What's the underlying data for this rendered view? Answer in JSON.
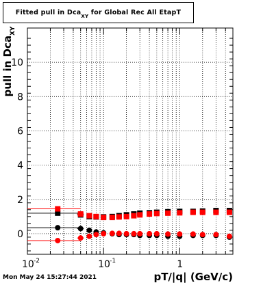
{
  "title": {
    "main": "Fitted pull in Dca",
    "sub": "XY",
    "rest": " for Global Rec All EtapT"
  },
  "y_axis_label": {
    "main": "pull in Dca",
    "sub": "XY"
  },
  "x_axis_label": "pT/|q| (GeV/c)",
  "timestamp": "Mon May 24 15:27:44 2021",
  "chart_data": {
    "type": "scatter",
    "x_scale": "log",
    "xlim": [
      0.01,
      5
    ],
    "ylim": [
      -1.2,
      12
    ],
    "y_ticks": [
      0,
      2,
      4,
      6,
      8,
      10
    ],
    "y_tick_labels": [
      "0",
      "2",
      "4",
      "6",
      "8",
      "10"
    ],
    "x_ticks": [
      0.01,
      0.1,
      1
    ],
    "x_tick_labels": [
      "10",
      "10",
      "1"
    ],
    "x_tick_exponents": [
      "-2",
      "-1",
      ""
    ],
    "grid": true,
    "series": [
      {
        "color": "#000000",
        "marker": "square",
        "x": [
          0.025,
          0.05,
          0.065,
          0.08,
          0.1,
          0.13,
          0.16,
          0.2,
          0.25,
          0.3,
          0.4,
          0.5,
          0.7,
          1.0,
          1.5,
          2.0,
          3.0,
          4.5
        ],
        "y": [
          1.2,
          1.1,
          1.0,
          0.98,
          0.98,
          1.0,
          1.05,
          1.1,
          1.15,
          1.2,
          1.22,
          1.25,
          1.28,
          1.3,
          1.3,
          1.32,
          1.35,
          1.35
        ],
        "xerr_low": [
          0.015,
          0.005,
          0.005,
          0.005,
          0.005,
          0.005,
          0.005,
          0.005,
          0.005,
          0.005,
          0.005,
          0.005,
          0.005,
          0.005,
          0.005,
          0.005,
          0.005,
          0.005
        ],
        "xerr_high": [
          0.025,
          0.005,
          0.005,
          0.005,
          0.005,
          0.005,
          0.005,
          0.005,
          0.005,
          0.005,
          0.005,
          0.005,
          0.005,
          0.005,
          0.005,
          0.005,
          0.005,
          0.005
        ]
      },
      {
        "color": "#ff0000",
        "marker": "square",
        "x": [
          0.025,
          0.05,
          0.065,
          0.08,
          0.1,
          0.13,
          0.16,
          0.2,
          0.25,
          0.3,
          0.4,
          0.5,
          0.7,
          1.0,
          1.5,
          2.0,
          3.0,
          4.5
        ],
        "y": [
          1.45,
          1.15,
          1.05,
          1.0,
          0.95,
          0.95,
          0.98,
          1.0,
          1.05,
          1.1,
          1.15,
          1.18,
          1.2,
          1.22,
          1.25,
          1.25,
          1.25,
          1.25
        ],
        "xerr_low": [
          0.015,
          0.005,
          0.005,
          0.005,
          0.005,
          0.005,
          0.005,
          0.005,
          0.005,
          0.005,
          0.005,
          0.005,
          0.005,
          0.005,
          0.005,
          0.005,
          0.005,
          0.005
        ],
        "xerr_high": [
          0.025,
          0.005,
          0.005,
          0.005,
          0.005,
          0.005,
          0.005,
          0.005,
          0.005,
          0.005,
          0.005,
          0.005,
          0.005,
          0.005,
          0.005,
          0.005,
          0.005,
          0.005
        ]
      },
      {
        "color": "#000000",
        "marker": "circle",
        "x": [
          0.025,
          0.05,
          0.065,
          0.08,
          0.1,
          0.13,
          0.16,
          0.2,
          0.25,
          0.3,
          0.4,
          0.5,
          0.7,
          1.0,
          1.5,
          2.0,
          3.0,
          4.5
        ],
        "y": [
          0.35,
          0.3,
          0.2,
          0.1,
          0.05,
          0.0,
          -0.05,
          -0.05,
          -0.05,
          -0.1,
          -0.1,
          -0.1,
          -0.15,
          -0.15,
          -0.1,
          -0.1,
          -0.1,
          -0.2
        ],
        "xerr_low": [
          0.015,
          0.005,
          0.005,
          0.005,
          0.005,
          0.005,
          0.005,
          0.005,
          0.005,
          0.005,
          0.005,
          0.005,
          0.005,
          0.005,
          0.005,
          0.005,
          0.005,
          0.005
        ],
        "xerr_high": [
          0.025,
          0.005,
          0.005,
          0.005,
          0.005,
          0.005,
          0.005,
          0.005,
          0.005,
          0.005,
          0.005,
          0.005,
          0.005,
          0.005,
          0.005,
          0.005,
          0.005,
          0.005
        ]
      },
      {
        "color": "#ff0000",
        "marker": "circle",
        "x": [
          0.025,
          0.05,
          0.065,
          0.08,
          0.1,
          0.13,
          0.16,
          0.2,
          0.25,
          0.3,
          0.4,
          0.5,
          0.7,
          1.0,
          1.5,
          2.0,
          3.0,
          4.5
        ],
        "y": [
          -0.4,
          -0.25,
          -0.15,
          -0.05,
          0.0,
          0.02,
          0.02,
          0.0,
          0.0,
          0.0,
          0.0,
          0.0,
          -0.02,
          -0.02,
          -0.02,
          -0.05,
          -0.05,
          -0.15
        ],
        "xerr_low": [
          0.015,
          0.005,
          0.005,
          0.005,
          0.005,
          0.005,
          0.005,
          0.005,
          0.005,
          0.005,
          0.005,
          0.005,
          0.005,
          0.005,
          0.005,
          0.005,
          0.005,
          0.005
        ],
        "xerr_high": [
          0.025,
          0.005,
          0.005,
          0.005,
          0.005,
          0.005,
          0.005,
          0.005,
          0.005,
          0.005,
          0.005,
          0.005,
          0.005,
          0.005,
          0.005,
          0.005,
          0.005,
          0.005
        ]
      }
    ]
  }
}
